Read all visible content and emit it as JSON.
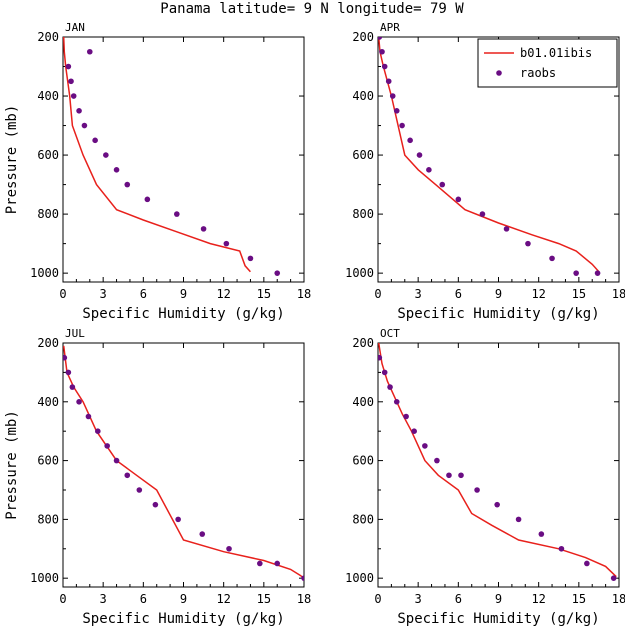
{
  "figure": {
    "title": "Panama  latitude= 9 N longitude= 79 W"
  },
  "colors": {
    "model_line": "#e8211c",
    "raobs_marker": "#6a0d83",
    "axes": "#000000"
  },
  "chart_data": [
    {
      "type": "line",
      "panel": "JAN",
      "xlabel": "Specific Humidity (g/kg)",
      "ylabel": "Pressure (mb)",
      "xlim": [
        0,
        18
      ],
      "ylim": [
        1030,
        200
      ],
      "xticks": [
        0,
        3,
        6,
        9,
        12,
        15,
        18
      ],
      "yticks": [
        200,
        400,
        600,
        800,
        1000
      ],
      "series": [
        {
          "name": "b01.01ibis",
          "kind": "line",
          "x": [
            0.05,
            0.1,
            0.2,
            0.35,
            0.5,
            0.7,
            1.5,
            2.5,
            4.0,
            6.0,
            8.5,
            11.0,
            13.2,
            13.6,
            14.0
          ],
          "y": [
            200,
            250,
            300,
            350,
            400,
            500,
            600,
            700,
            785,
            820,
            860,
            900,
            925,
            975,
            995
          ]
        },
        {
          "name": "raobs",
          "kind": "scatter",
          "x": [
            2.0,
            0.4,
            0.6,
            0.8,
            1.2,
            1.6,
            2.4,
            3.2,
            4.0,
            4.8,
            6.3,
            8.5,
            10.5,
            12.2,
            14.0,
            16.0
          ],
          "y": [
            250,
            300,
            350,
            400,
            450,
            500,
            550,
            600,
            650,
            700,
            750,
            800,
            850,
            900,
            950,
            1000
          ]
        }
      ],
      "legend": "none"
    },
    {
      "type": "line",
      "panel": "APR",
      "xlabel": "Specific Humidity (g/kg)",
      "ylabel": "",
      "xlim": [
        0,
        18
      ],
      "ylim": [
        1030,
        200
      ],
      "xticks": [
        0,
        3,
        6,
        9,
        12,
        15,
        18
      ],
      "yticks": [
        200,
        400,
        600,
        800,
        1000
      ],
      "series": [
        {
          "name": "b01.01ibis",
          "kind": "line",
          "x": [
            0.05,
            0.15,
            0.4,
            0.7,
            1.0,
            1.5,
            2.0,
            3.0,
            4.3,
            6.5,
            9.0,
            11.5,
            13.5,
            14.8,
            16.0,
            16.5
          ],
          "y": [
            200,
            250,
            300,
            350,
            400,
            500,
            600,
            650,
            700,
            785,
            830,
            870,
            900,
            925,
            970,
            995
          ]
        },
        {
          "name": "raobs",
          "kind": "scatter",
          "x": [
            0.1,
            0.3,
            0.5,
            0.8,
            1.1,
            1.4,
            1.8,
            2.4,
            3.1,
            3.8,
            4.8,
            6.0,
            7.8,
            9.6,
            11.2,
            13.0,
            14.8,
            16.4
          ],
          "y": [
            200,
            250,
            300,
            350,
            400,
            450,
            500,
            550,
            600,
            650,
            700,
            750,
            800,
            850,
            900,
            950,
            1000,
            1000
          ]
        }
      ],
      "legend": "top-right"
    },
    {
      "type": "line",
      "panel": "JUL",
      "xlabel": "Specific Humidity (g/kg)",
      "ylabel": "Pressure (mb)",
      "xlim": [
        0,
        18
      ],
      "ylim": [
        1030,
        200
      ],
      "xticks": [
        0,
        3,
        6,
        9,
        12,
        15,
        18
      ],
      "yticks": [
        200,
        400,
        600,
        800,
        1000
      ],
      "series": [
        {
          "name": "b01.01ibis",
          "kind": "line",
          "x": [
            0.05,
            0.3,
            0.8,
            1.5,
            2.5,
            4.0,
            5.5,
            7.0,
            9.0,
            12.0,
            15.0,
            17.0,
            17.7,
            18.0
          ],
          "y": [
            210,
            300,
            350,
            400,
            500,
            600,
            650,
            700,
            870,
            910,
            940,
            970,
            990,
            1000
          ]
        },
        {
          "name": "raobs",
          "kind": "scatter",
          "x": [
            0.1,
            0.4,
            0.7,
            1.2,
            1.9,
            2.6,
            3.3,
            4.0,
            4.8,
            5.7,
            6.9,
            8.6,
            10.4,
            12.4,
            14.7,
            16.0,
            18.0
          ],
          "y": [
            250,
            300,
            350,
            400,
            450,
            500,
            550,
            600,
            650,
            700,
            750,
            800,
            850,
            900,
            950,
            950,
            1000
          ]
        }
      ],
      "legend": "none"
    },
    {
      "type": "line",
      "panel": "OCT",
      "xlabel": "Specific Humidity (g/kg)",
      "ylabel": "",
      "xlim": [
        0,
        18
      ],
      "ylim": [
        1030,
        200
      ],
      "xticks": [
        0,
        3,
        6,
        9,
        12,
        15,
        18
      ],
      "yticks": [
        200,
        400,
        600,
        800,
        1000
      ],
      "series": [
        {
          "name": "b01.01ibis",
          "kind": "line",
          "x": [
            0.05,
            0.3,
            0.7,
            1.2,
            1.8,
            2.5,
            3.5,
            4.5,
            6.0,
            7.0,
            8.5,
            10.5,
            13.5,
            15.5,
            17.0,
            17.8
          ],
          "y": [
            200,
            270,
            330,
            380,
            440,
            500,
            600,
            650,
            700,
            780,
            820,
            870,
            900,
            930,
            960,
            995
          ]
        },
        {
          "name": "raobs",
          "kind": "scatter",
          "x": [
            0.1,
            0.5,
            0.9,
            1.4,
            2.1,
            2.7,
            3.5,
            4.4,
            5.3,
            6.2,
            7.4,
            8.9,
            10.5,
            12.2,
            13.7,
            15.6,
            17.6
          ],
          "y": [
            250,
            300,
            350,
            400,
            450,
            500,
            550,
            600,
            650,
            650,
            700,
            750,
            800,
            850,
            900,
            950,
            1000
          ]
        }
      ],
      "legend": "none"
    }
  ]
}
